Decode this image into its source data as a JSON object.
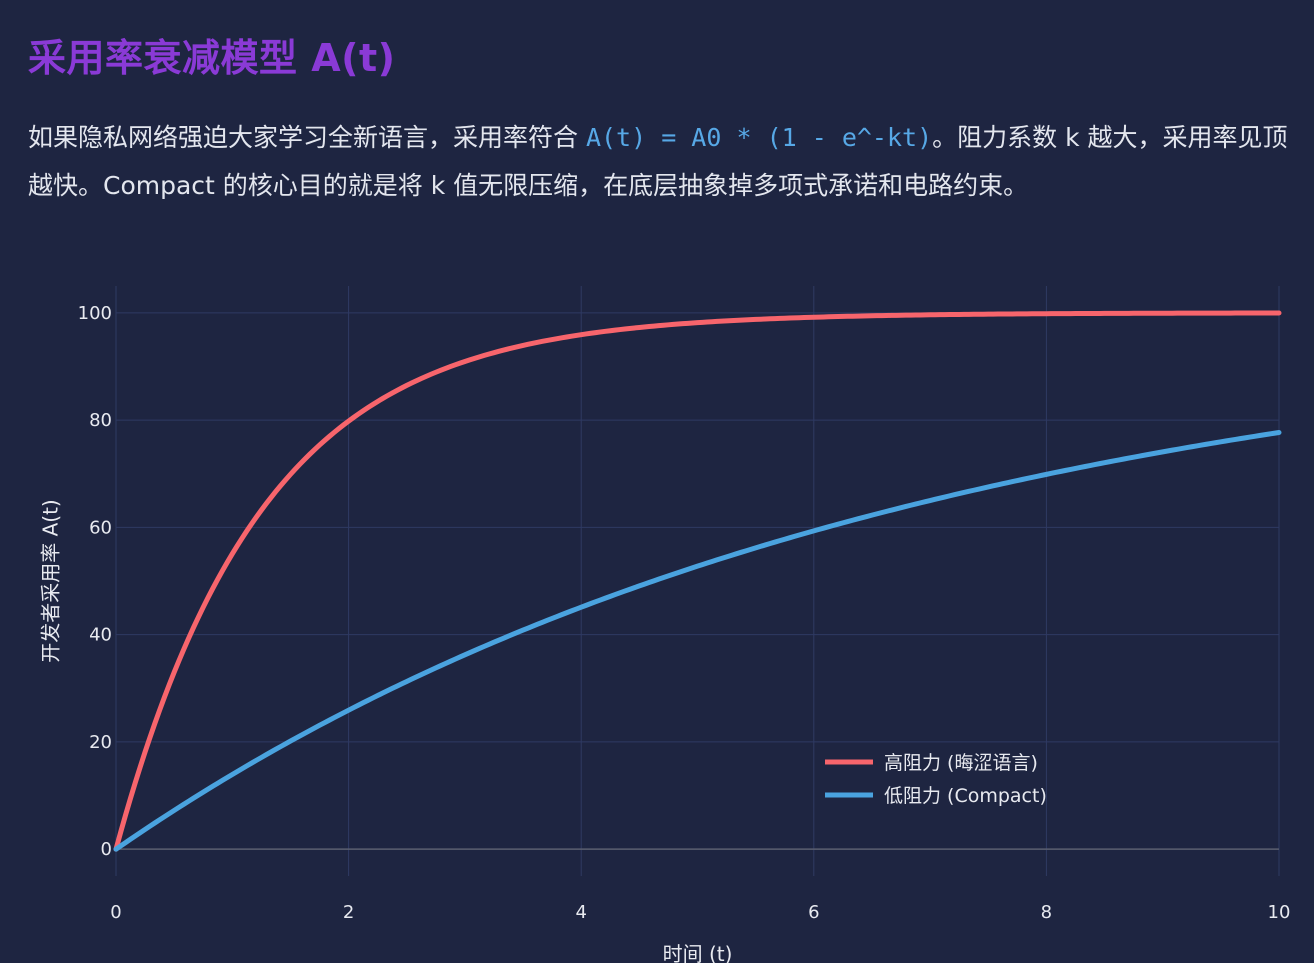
{
  "header": {
    "title": "采用率衰减模型 A(t)"
  },
  "intro": {
    "part1": "如果隐私网络强迫大家学习全新语言，采用率符合 ",
    "formula": "A(t) = A0 * (1 - e^-kt)",
    "part2": "。阻力系数 k 越大，采用率见顶越快。Compact 的核心目的就是将 k 值无限压缩，在底层抽象掉多项式承诺和电路约束。"
  },
  "colors": {
    "background": "#1e2541",
    "title": "#8a3ad6",
    "formula": "#57a8e6",
    "grid": "#2f3a63",
    "zeroline": "#5b5f70"
  },
  "chart_data": {
    "type": "line",
    "title": "",
    "xlabel": "时间 (t)",
    "ylabel": "开发者采用率 A(t)",
    "xlim": [
      0,
      10
    ],
    "ylim": [
      -5,
      105
    ],
    "x_ticks": [
      0,
      2,
      4,
      6,
      8,
      10
    ],
    "y_ticks": [
      0,
      20,
      40,
      60,
      80,
      100
    ],
    "grid": true,
    "legend_position": "bottom-right",
    "model": "A(t) = A0 * (1 - e^-kt)",
    "series": [
      {
        "name": "高阻力 (晦涩语言)",
        "color": "#f7656c",
        "A0": 100,
        "k": 0.8,
        "x": [
          0,
          0.5,
          1,
          1.5,
          2,
          2.5,
          3,
          3.5,
          4,
          4.5,
          5,
          5.5,
          6,
          6.5,
          7,
          7.5,
          8,
          8.5,
          9,
          9.5,
          10
        ],
        "y": [
          0,
          33,
          55.1,
          69.9,
          79.8,
          86.5,
          90.9,
          93.9,
          95.9,
          97.3,
          98.2,
          98.8,
          99.2,
          99.4,
          99.6,
          99.8,
          99.8,
          99.9,
          99.9,
          100,
          100
        ]
      },
      {
        "name": "低阻力 (Compact)",
        "color": "#4aa3df",
        "A0": 100,
        "k": 0.15,
        "x": [
          0,
          0.5,
          1,
          1.5,
          2,
          2.5,
          3,
          3.5,
          4,
          4.5,
          5,
          5.5,
          6,
          6.5,
          7,
          7.5,
          8,
          8.5,
          9,
          9.5,
          10
        ],
        "y": [
          0,
          7.2,
          13.9,
          20.1,
          25.9,
          31.3,
          36.2,
          40.8,
          45.1,
          49.1,
          52.8,
          56.2,
          59.3,
          62.3,
          65,
          67.5,
          69.9,
          72,
          74.1,
          75.9,
          77.7
        ]
      }
    ]
  }
}
